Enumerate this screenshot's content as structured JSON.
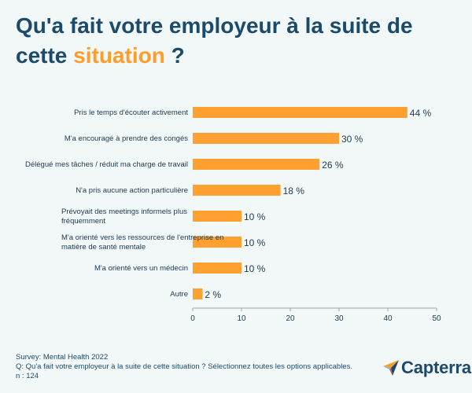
{
  "title": {
    "part1": "Qu'a fait votre employeur à la suite de cette ",
    "highlight": "situation",
    "part2": " ?"
  },
  "colors": {
    "bar": "#ffa031",
    "title": "#1b4a6b",
    "highlight": "#ff9d28",
    "text": "#1b3a4f",
    "background": "#f2f7f8"
  },
  "chart_data": {
    "type": "bar",
    "orientation": "horizontal",
    "categories": [
      [
        "Pris le temps d'écouter activement"
      ],
      [
        "M'a encouragé à prendre des congés"
      ],
      [
        "Délégué mes tâches / réduit ma charge de travail"
      ],
      [
        "N'a pris aucune action particulière"
      ],
      [
        "Prévoyait des meetings informels plus",
        "fréquemment"
      ],
      [
        "M'a orienté vers les ressources de l'entreprise en",
        "matière de santé mentale"
      ],
      [
        "M'a orienté vers un médecin"
      ],
      [
        "Autre"
      ]
    ],
    "values": [
      44,
      30,
      26,
      18,
      10,
      10,
      10,
      2
    ],
    "value_labels": [
      "44 %",
      "30 %",
      "26 %",
      "18 %",
      "10 %",
      "10 %",
      "10 %",
      "2 %"
    ],
    "xlim": [
      0,
      50
    ],
    "xticks": [
      "0",
      "10",
      "20",
      "30",
      "40",
      "50"
    ],
    "grid": false,
    "legend": "none"
  },
  "footer": {
    "survey": "Survey: Mental Health 2022",
    "question": "Q: Qu'a fait votre employeur à la suite de cette situation ? Sélectionnez toutes les options applicables.",
    "n": "n : 124"
  },
  "logo": {
    "text": "Capterra",
    "icon": "capterra-arrow-logo"
  }
}
